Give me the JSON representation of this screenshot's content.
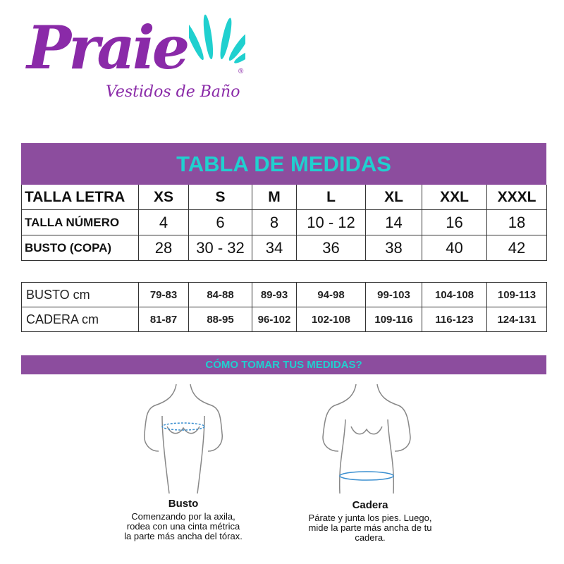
{
  "brand": {
    "name": "Praie",
    "tagline": "Vestidos de Baño",
    "registered": "®",
    "colors": {
      "purple": "#8a2aa8",
      "teal": "#20d0cf",
      "band": "#8c4d9e"
    }
  },
  "title": "TABLA DE MEDIDAS",
  "size_table": {
    "rows": [
      {
        "label": "TALLA LETRA",
        "values": [
          "XS",
          "S",
          "M",
          "L",
          "XL",
          "XXL",
          "XXXL"
        ]
      },
      {
        "label": "TALLA NÚMERO",
        "values": [
          "4",
          "6",
          "8",
          "10 - 12",
          "14",
          "16",
          "18"
        ]
      },
      {
        "label": "BUSTO (COPA)",
        "values": [
          "28",
          "30 - 32",
          "34",
          "36",
          "38",
          "40",
          "42"
        ]
      }
    ]
  },
  "cm_table": {
    "rows": [
      {
        "label": "BUSTO cm",
        "values": [
          "79-83",
          "84-88",
          "89-93",
          "94-98",
          "99-103",
          "104-108",
          "109-113"
        ]
      },
      {
        "label": "CADERA cm",
        "values": [
          "81-87",
          "88-95",
          "96-102",
          "102-108",
          "109-116",
          "116-123",
          "124-131"
        ]
      }
    ]
  },
  "how_to": {
    "title": "CÓMO TOMAR TUS MEDIDAS?",
    "items": [
      {
        "title": "Busto",
        "lines": [
          "Comenzando por la axila,",
          "rodea con una cinta métrica",
          "la parte más ancha del tórax."
        ]
      },
      {
        "title": "Cadera",
        "lines": [
          "Párate y junta los pies. Luego,",
          "mide la parte más ancha de tu",
          "cadera."
        ]
      }
    ]
  }
}
